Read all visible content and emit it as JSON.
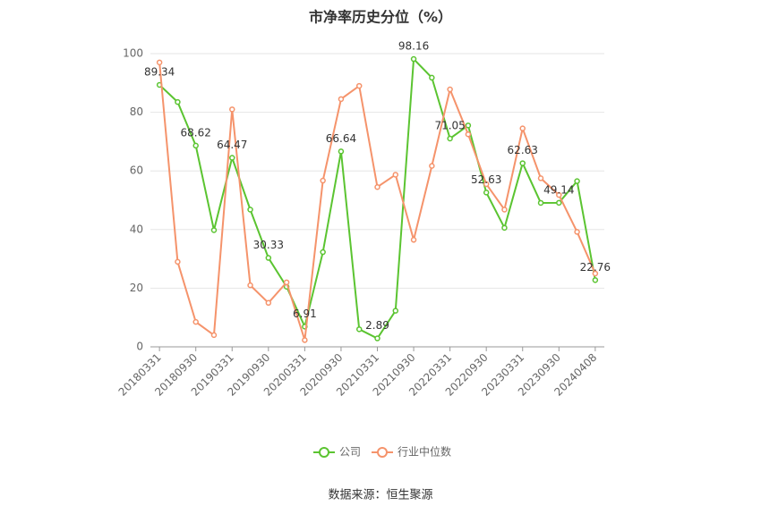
{
  "chart_data": {
    "type": "line",
    "title": "市净率历史分位（%）",
    "source": "数据来源：恒生聚源",
    "categories": [
      "20180331",
      null,
      "20180930",
      null,
      "20190331",
      null,
      "20190930",
      null,
      "20200331",
      null,
      "20200930",
      null,
      "20210331",
      null,
      "20210930",
      null,
      "20220331",
      null,
      "20220930",
      null,
      "20230331",
      null,
      "20230930",
      null,
      "20240408"
    ],
    "series": [
      {
        "name": "公司",
        "color": "#5bc431",
        "values": [
          89.34,
          83.5,
          68.62,
          39.8,
          64.47,
          46.8,
          30.33,
          20.5,
          6.91,
          32.3,
          66.64,
          6.0,
          2.89,
          12.3,
          98.16,
          91.8,
          71.05,
          75.5,
          52.63,
          40.6,
          62.63,
          49.1,
          49.14,
          56.5,
          22.76
        ],
        "value_labels": [
          "89.34",
          null,
          "68.62",
          null,
          "64.47",
          null,
          "30.33",
          null,
          "6.91",
          null,
          "66.64",
          null,
          "2.89",
          null,
          "98.16",
          null,
          "71.05",
          null,
          "52.63",
          null,
          "62.63",
          null,
          "49.14",
          null,
          "22.76"
        ]
      },
      {
        "name": "行业中位数",
        "color": "#f5936b",
        "values": [
          97,
          29,
          8.5,
          4,
          81,
          21,
          15,
          22,
          2.3,
          56.7,
          84.5,
          89,
          54.5,
          58.7,
          36.5,
          61.7,
          87.8,
          72.5,
          55.5,
          46.8,
          74.5,
          57.5,
          51.8,
          39.2,
          25
        ]
      }
    ],
    "ylim": [
      0,
      100
    ],
    "yticks": [
      0,
      20,
      40,
      60,
      80,
      100
    ],
    "grid": true,
    "legend": "bottom"
  }
}
